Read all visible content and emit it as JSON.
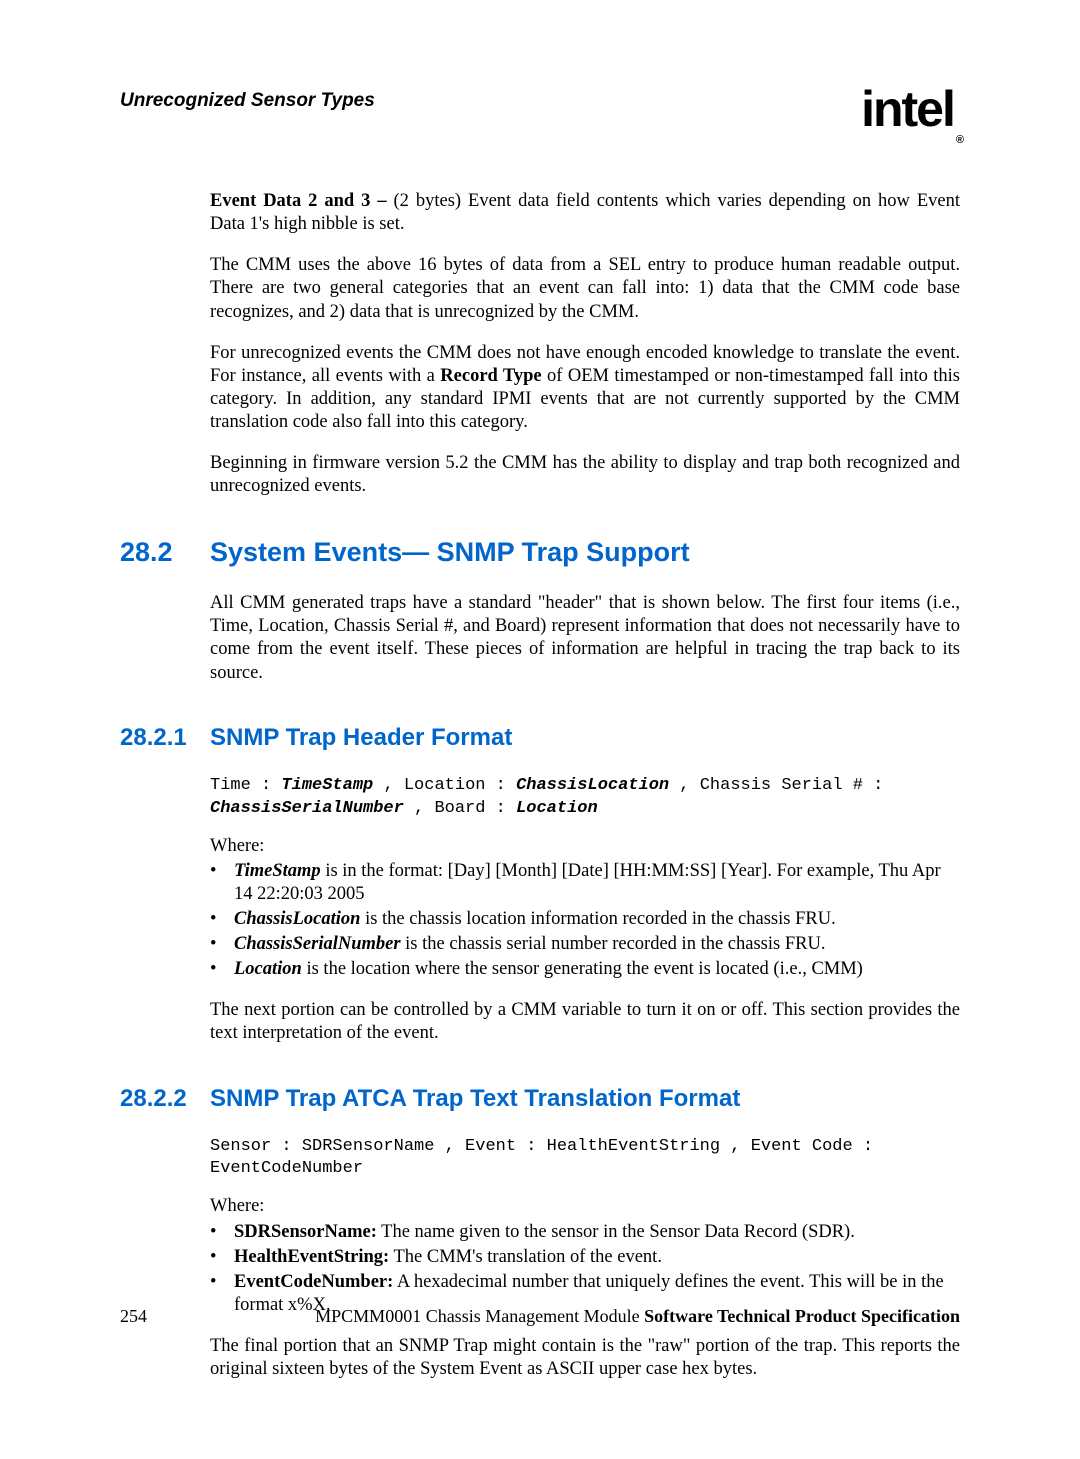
{
  "header": {
    "title": "Unrecognized Sensor Types",
    "logo_text": "intel",
    "logo_reg": "®"
  },
  "body": {
    "p1_lead": "Event Data 2 and 3 –",
    "p1_rest": " (2 bytes) Event data field contents which varies depending on how Event Data 1's high nibble is set.",
    "p2": "The CMM uses the above 16 bytes of data from a SEL entry to produce human readable output. There are two general categories that an event can fall into: 1) data that the CMM code base recognizes, and 2) data that is unrecognized by the CMM.",
    "p3_a": "For unrecognized events the CMM does not have enough encoded knowledge to translate the event. For instance, all events with a ",
    "p3_bold": "Record Type",
    "p3_b": " of OEM timestamped or non-timestamped fall into this category. In addition, any standard IPMI events that are not currently supported by the CMM translation code also fall into this category.",
    "p4": "Beginning in firmware version 5.2 the CMM has the ability to display and trap both recognized and unrecognized events."
  },
  "s282": {
    "num": "28.2",
    "title": "System Events— SNMP Trap Support",
    "p1": "All CMM generated traps have a standard \"header\" that is shown below. The first four items (i.e., Time, Location, Chassis Serial #, and Board) represent information that does not necessarily have to come from the event itself. These pieces of information are helpful in tracing the trap back to its source."
  },
  "s2821": {
    "num": "28.2.1",
    "title": "SNMP Trap Header Format",
    "code_l1_a": "Time : ",
    "code_l1_b": "TimeStamp",
    "code_l1_c": " , Location : ",
    "code_l1_d": "ChassisLocation",
    "code_l1_e": " , Chassis Serial # :",
    "code_l2_a": "ChassisSerialNumber",
    "code_l2_b": " , Board : ",
    "code_l2_c": "Location",
    "where": "Where:",
    "b1_term": "TimeStamp",
    "b1_rest": " is in the format: [Day] [Month] [Date] [HH:MM:SS] [Year]. For example, Thu Apr 14 22:20:03 2005",
    "b2_term": "ChassisLocation",
    "b2_rest": " is the chassis location information recorded in the chassis FRU.",
    "b3_term": "ChassisSerialNumber",
    "b3_rest": " is the chassis serial number recorded in the chassis FRU.",
    "b4_term": "Location",
    "b4_rest": " is the location where the sensor generating the event is located (i.e., CMM)",
    "p2": "The next portion can be controlled by a CMM variable to turn it on or off. This section provides the text interpretation of the event."
  },
  "s2822": {
    "num": "28.2.2",
    "title": "SNMP Trap ATCA Trap Text Translation Format",
    "code_l1": "Sensor : SDRSensorName , Event : HealthEventString , Event Code :",
    "code_l2": "EventCodeNumber",
    "where": "Where:",
    "b1_term": "SDRSensorName:",
    "b1_rest": " The name given to the sensor in the Sensor Data Record (SDR).",
    "b2_term": "HealthEventString:",
    "b2_rest": " The CMM's translation of the event.",
    "b3_term": "EventCodeNumber:",
    "b3_rest": " A hexadecimal number that uniquely defines the event. This will be in the format x%X.",
    "p2": "The final portion that an SNMP Trap might contain is the \"raw\" portion of the trap. This reports the original sixteen bytes of the System Event as ASCII upper case hex bytes."
  },
  "footer": {
    "page_num": "254",
    "text_a": "MPCMM0001 Chassis Management Module ",
    "text_b": "Software Technical Product Specification"
  },
  "bullet_char": "•",
  "colors": {
    "heading": "#0066cc",
    "text": "#000000",
    "background": "#ffffff"
  },
  "fonts": {
    "body_family": "Times New Roman",
    "heading_family": "Arial",
    "code_family": "Courier New",
    "body_size": 18.5,
    "h2_size": 27,
    "h3_size": 24,
    "code_size": 17
  }
}
